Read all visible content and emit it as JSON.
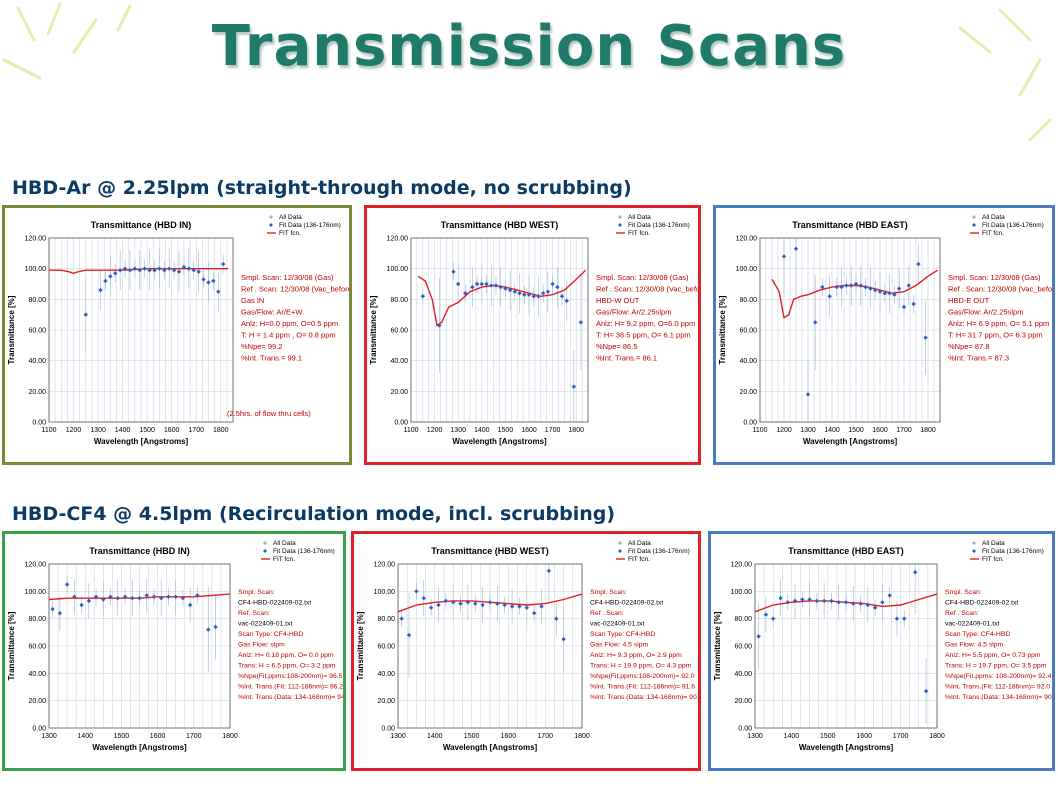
{
  "title": "Transmission Scans",
  "section_top": "HBD-Ar @ 2.25lpm (straight-through mode, no scrubbing)",
  "section_bottom": "HBD-CF4 @ 4.5lpm (Recirculation mode, incl. scrubbing)",
  "colors": {
    "title": "#1f7a6a",
    "heading": "#0b3a63",
    "fit_line": "#e02020",
    "fit_data": "#2f5ec4",
    "all_data": "#9fb3cf",
    "annotation": "#c00000",
    "border_olive": "#7a8a3a",
    "border_red": "#e0202a",
    "border_blue": "#4a7bc0",
    "border_green": "#3aa04a"
  },
  "legend": [
    "All Data",
    "Fit Data (136-176nm)",
    "FIT fcn."
  ],
  "ylabel": "Transmittance  [%]",
  "xlabel": "Wavelength [Angstroms]",
  "chart_data": [
    {
      "type": "scatter",
      "title": "Transmittance (HBD IN)",
      "border": "olive",
      "xlim": [
        1100,
        1850
      ],
      "ylim": [
        0,
        120
      ],
      "xticks": [
        "1100",
        "1200",
        "1300",
        "1400",
        "1500",
        "1600",
        "1700",
        "1800"
      ],
      "yticks": [
        "0.00",
        "20.00",
        "40.00",
        "60.00",
        "80.00",
        "100.00",
        "120.00"
      ],
      "series": [
        {
          "name": "Fit Data (136-176nm)",
          "x": [
            1250,
            1310,
            1330,
            1350,
            1370,
            1390,
            1410,
            1430,
            1450,
            1470,
            1490,
            1510,
            1530,
            1550,
            1570,
            1590,
            1610,
            1630,
            1650,
            1670,
            1690,
            1710,
            1730,
            1750,
            1770,
            1790,
            1810
          ],
          "y": [
            70,
            86,
            92,
            95,
            97,
            99,
            100,
            99,
            100,
            99,
            100,
            99,
            99,
            100,
            99,
            100,
            99,
            98,
            101,
            100,
            99,
            98,
            93,
            91,
            92,
            85,
            103
          ]
        },
        {
          "name": "FIT fcn.",
          "x": [
            1100,
            1150,
            1180,
            1200,
            1220,
            1250,
            1300,
            1400,
            1500,
            1600,
            1700,
            1800,
            1830
          ],
          "y": [
            99,
            99,
            98,
            97,
            98,
            99,
            99,
            99,
            100,
            100,
            100,
            100,
            100
          ]
        }
      ],
      "annotations": [
        {
          "text": "Smpl. Scan: 12/30/08 (Gas)",
          "plain": false
        },
        {
          "text": "Ref . Scan: 12/30/08 (Vac_before)",
          "plain": false
        },
        {
          "text": "Gas IN",
          "plain": false
        },
        {
          "text": "Gas/Flow: Ar/E+W",
          "plain": false
        },
        {
          "text": "Anlz: H=0.0 ppm, O=0.5 ppm",
          "plain": false
        },
        {
          "text": "T: H =  1.4   ppm ,  O=  0.8    ppm",
          "plain": false
        },
        {
          "text": "%Npe=   99.2",
          "plain": false
        },
        {
          "text": "%Int. Trans.=    99.1",
          "plain": false
        }
      ],
      "note": "(2.5hrs. of flow thru cells)"
    },
    {
      "type": "scatter",
      "title": "Transmittance (HBD WEST)",
      "border": "red",
      "xlim": [
        1100,
        1850
      ],
      "ylim": [
        0,
        120
      ],
      "xticks": [
        "1100",
        "1200",
        "1300",
        "1400",
        "1500",
        "1600",
        "1700",
        "1800"
      ],
      "yticks": [
        "0.00",
        "20.00",
        "40.00",
        "60.00",
        "80.00",
        "100.00",
        "120.00"
      ],
      "series": [
        {
          "name": "Fit Data (136-176nm)",
          "x": [
            1150,
            1220,
            1280,
            1300,
            1330,
            1360,
            1380,
            1400,
            1420,
            1440,
            1460,
            1480,
            1500,
            1520,
            1540,
            1560,
            1580,
            1600,
            1620,
            1640,
            1660,
            1680,
            1700,
            1720,
            1740,
            1760,
            1790,
            1820
          ],
          "y": [
            82,
            63,
            98,
            90,
            84,
            88,
            90,
            90,
            90,
            89,
            89,
            88,
            87,
            86,
            85,
            84,
            83,
            83,
            82,
            82,
            84,
            85,
            90,
            88,
            82,
            79,
            23,
            65
          ]
        },
        {
          "name": "FIT fcn.",
          "x": [
            1130,
            1160,
            1190,
            1210,
            1230,
            1260,
            1300,
            1350,
            1400,
            1450,
            1500,
            1550,
            1600,
            1650,
            1700,
            1750,
            1800,
            1840
          ],
          "y": [
            95,
            92,
            80,
            63,
            65,
            75,
            78,
            85,
            88,
            89,
            88,
            86,
            84,
            82,
            83,
            86,
            93,
            99
          ]
        }
      ],
      "annotations": [
        {
          "text": "Smpl. Scan: 12/30/08 (Gas)",
          "plain": false
        },
        {
          "text": "Ref . Scan: 12/30/08 (Vac_before)",
          "plain": false
        },
        {
          "text": "HBD-W OUT",
          "plain": false
        },
        {
          "text": "Gas/Flow: Ar/2.25slpm",
          "plain": false
        },
        {
          "text": "Anlz: H= 9.2 ppm, O=6.0 ppm",
          "plain": false
        },
        {
          "text": "T: H=   36.5   ppm, O=   6.1      ppm",
          "plain": false
        },
        {
          "text": "%Npe=      86.5",
          "plain": false
        },
        {
          "text": "%Int. Trans.=    86.1",
          "plain": false
        }
      ]
    },
    {
      "type": "scatter",
      "title": "Transmittance (HBD EAST)",
      "border": "blue",
      "xlim": [
        1100,
        1850
      ],
      "ylim": [
        0,
        120
      ],
      "xticks": [
        "1100",
        "1200",
        "1300",
        "1400",
        "1500",
        "1600",
        "1700",
        "1800"
      ],
      "yticks": [
        "0.00",
        "20.00",
        "40.00",
        "60.00",
        "80.00",
        "100.00",
        "120.00"
      ],
      "series": [
        {
          "name": "Fit Data (136-176nm)",
          "x": [
            1200,
            1250,
            1300,
            1330,
            1360,
            1390,
            1420,
            1440,
            1460,
            1480,
            1500,
            1520,
            1540,
            1560,
            1580,
            1600,
            1620,
            1640,
            1660,
            1680,
            1700,
            1720,
            1740,
            1760,
            1790
          ],
          "y": [
            108,
            113,
            18,
            65,
            88,
            82,
            88,
            88,
            89,
            89,
            90,
            89,
            88,
            87,
            86,
            85,
            84,
            84,
            83,
            87,
            75,
            89,
            77,
            103,
            55
          ]
        },
        {
          "name": "FIT fcn.",
          "x": [
            1150,
            1180,
            1200,
            1220,
            1240,
            1270,
            1300,
            1350,
            1400,
            1450,
            1500,
            1550,
            1600,
            1650,
            1700,
            1750,
            1800,
            1840
          ],
          "y": [
            93,
            85,
            68,
            70,
            80,
            82,
            83,
            86,
            88,
            89,
            89,
            88,
            86,
            84,
            85,
            89,
            95,
            99
          ]
        }
      ],
      "annotations": [
        {
          "text": "Smpl. Scan: 12/30/08 (Gas)",
          "plain": false
        },
        {
          "text": "Ref . Scan: 12/30/08 (Vac_before)",
          "plain": false
        },
        {
          "text": "HBD-E OUT",
          "plain": false
        },
        {
          "text": "Gas/Flow: Ar/2.25slpm",
          "plain": false
        },
        {
          "text": "Anlz: H= 6.9 ppm, O= 5.1  ppm",
          "plain": false
        },
        {
          "text": "T: H=   31.7  ppm, O=  6.3  ppm",
          "plain": false
        },
        {
          "text": "%Npe=       87.8",
          "plain": false
        },
        {
          "text": "%Int. Trans.=    87.3",
          "plain": false
        }
      ]
    },
    {
      "type": "scatter",
      "title": "Transmittance (HBD IN)",
      "border": "green",
      "xlim": [
        1300,
        1800
      ],
      "ylim": [
        0,
        120
      ],
      "xticks": [
        "1300",
        "1400",
        "1500",
        "1600",
        "1700",
        "1800"
      ],
      "yticks": [
        "0.00",
        "20.00",
        "40.00",
        "60.00",
        "80.00",
        "100.00",
        "120.00"
      ],
      "series": [
        {
          "name": "Fit Data (136-176nm)",
          "x": [
            1310,
            1330,
            1350,
            1370,
            1390,
            1410,
            1430,
            1450,
            1470,
            1490,
            1510,
            1530,
            1550,
            1570,
            1590,
            1610,
            1630,
            1650,
            1670,
            1690,
            1710,
            1740,
            1760
          ],
          "y": [
            87,
            84,
            105,
            96,
            90,
            93,
            96,
            94,
            96,
            95,
            96,
            95,
            95,
            97,
            96,
            95,
            96,
            96,
            95,
            90,
            97,
            72,
            74
          ]
        },
        {
          "name": "FIT fcn.",
          "x": [
            1300,
            1350,
            1400,
            1450,
            1500,
            1550,
            1600,
            1650,
            1700,
            1750,
            1800
          ],
          "y": [
            94,
            95,
            95,
            95,
            95,
            95,
            96,
            96,
            96,
            97,
            98
          ]
        }
      ],
      "annotations": [
        {
          "text": "Smpl. Scan:",
          "plain": false
        },
        {
          "text": "CF4-HBD-022409-02.txt",
          "plain": true
        },
        {
          "text": "Ref. Scan:",
          "plain": false
        },
        {
          "text": "vac-022409-01.txt",
          "plain": true
        },
        {
          "text": "Scan Type:   CF4-HBD",
          "plain": false
        },
        {
          "text": "Gas Flow:              slpm",
          "plain": false
        },
        {
          "text": "Anlz:  H=   0.18   ppm, O=    0.0    ppm",
          "plain": false
        },
        {
          "text": "Trans: H =  6.5    ppm, O=    3.2    ppm",
          "plain": false
        },
        {
          "text": "%Npe(Fit.ppms:108-200nm)=   96.5",
          "plain": false
        },
        {
          "text": "%Int. Trans.(Fit: 112-186nm)=  96.2",
          "plain": false
        },
        {
          "text": "%Int. Trans.(Data: 134-168nm)=  94.6",
          "plain": false
        }
      ]
    },
    {
      "type": "scatter",
      "title": "Transmittance (HBD WEST)",
      "border": "red",
      "xlim": [
        1300,
        1800
      ],
      "ylim": [
        0,
        120
      ],
      "xticks": [
        "1300",
        "1400",
        "1500",
        "1600",
        "1700",
        "1800"
      ],
      "yticks": [
        "0.00",
        "20.00",
        "40.00",
        "60.00",
        "80.00",
        "100.00",
        "120.00"
      ],
      "series": [
        {
          "name": "Fit Data (136-176nm)",
          "x": [
            1310,
            1330,
            1350,
            1370,
            1390,
            1410,
            1430,
            1450,
            1470,
            1490,
            1510,
            1530,
            1550,
            1570,
            1590,
            1610,
            1630,
            1650,
            1670,
            1690,
            1710,
            1730,
            1750
          ],
          "y": [
            80,
            68,
            100,
            95,
            88,
            90,
            93,
            92,
            91,
            92,
            91,
            90,
            92,
            91,
            90,
            89,
            89,
            88,
            84,
            89,
            115,
            80,
            65
          ]
        },
        {
          "name": "FIT fcn.",
          "x": [
            1300,
            1350,
            1400,
            1450,
            1500,
            1550,
            1600,
            1650,
            1700,
            1750,
            1800
          ],
          "y": [
            85,
            90,
            92,
            93,
            93,
            92,
            91,
            90,
            91,
            94,
            98
          ]
        }
      ],
      "annotations": [
        {
          "text": "Smpl. Scan:",
          "plain": false
        },
        {
          "text": "CF4-HBD-022409-02.txt",
          "plain": true
        },
        {
          "text": "Ref . Scan:",
          "plain": false
        },
        {
          "text": "vac-022409-01.txt",
          "plain": true
        },
        {
          "text": "Scan Type:     CF4-HBD",
          "plain": false
        },
        {
          "text": "Gas Flow:     4.5       slpm",
          "plain": false
        },
        {
          "text": "Anlz:  H=    9.3    ppm, O=    2.9      ppm",
          "plain": false
        },
        {
          "text": "Trans: H = 19.9    ppm, O=    4.3      ppm",
          "plain": false
        },
        {
          "text": "%Npe(Fit.ppms:108-200nm)=  92.0",
          "plain": false
        },
        {
          "text": "%Int. Trans.(Fit: 112-186nm)=  91.6",
          "plain": false
        },
        {
          "text": "%Int. Trans.(Data: 134-168nm)=  90.2",
          "plain": false
        }
      ]
    },
    {
      "type": "scatter",
      "title": "Transmittance (HBD EAST)",
      "border": "blue",
      "xlim": [
        1300,
        1800
      ],
      "ylim": [
        0,
        120
      ],
      "xticks": [
        "1300",
        "1400",
        "1500",
        "1600",
        "1700",
        "1800"
      ],
      "yticks": [
        "0.00",
        "20.00",
        "40.00",
        "60.00",
        "80.00",
        "100.00",
        "120.00"
      ],
      "series": [
        {
          "name": "Fit Data (136-176nm)",
          "x": [
            1310,
            1330,
            1350,
            1370,
            1390,
            1410,
            1430,
            1450,
            1470,
            1490,
            1510,
            1530,
            1550,
            1570,
            1590,
            1610,
            1630,
            1650,
            1670,
            1690,
            1710,
            1740,
            1770
          ],
          "y": [
            67,
            83,
            80,
            95,
            92,
            93,
            94,
            94,
            93,
            93,
            93,
            92,
            92,
            91,
            91,
            90,
            88,
            92,
            97,
            80,
            80,
            114,
            27
          ]
        },
        {
          "name": "FIT fcn.",
          "x": [
            1300,
            1350,
            1400,
            1450,
            1500,
            1550,
            1600,
            1650,
            1700,
            1750,
            1800
          ],
          "y": [
            85,
            90,
            92,
            93,
            93,
            92,
            91,
            89,
            90,
            94,
            98
          ]
        }
      ],
      "annotations": [
        {
          "text": "Smpl. Scan:",
          "plain": false
        },
        {
          "text": "CF4-HBD-022409-02.txt",
          "plain": true
        },
        {
          "text": "Ref . Scan:",
          "plain": false
        },
        {
          "text": "vac-022409-01.txt",
          "plain": true
        },
        {
          "text": "Scan Type:  CF4-HBD",
          "plain": false
        },
        {
          "text": "Gas Flow:    4.5        slpm",
          "plain": false
        },
        {
          "text": "Anlz:  H=    5.5     ppm, O=   0.73   ppm",
          "plain": false
        },
        {
          "text": "Trans: H = 19.7    ppm, O=    3.5     ppm",
          "plain": false
        },
        {
          "text": "%Npe(Fit.ppms: 108-200nm)=   92.4",
          "plain": false
        },
        {
          "text": "%Int. Trans.(Fit: 112-186nm)=    92.0",
          "plain": false
        },
        {
          "text": "%Int. Trans.(Data: 134-168nm)=  90.1",
          "plain": false
        }
      ]
    }
  ]
}
